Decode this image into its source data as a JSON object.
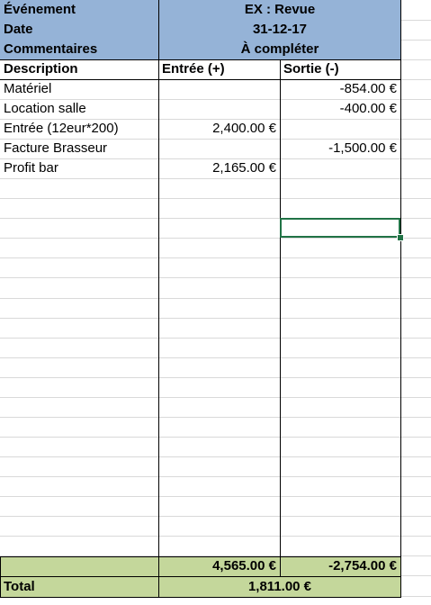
{
  "header": {
    "labels": [
      "Événement",
      "Date",
      "Commentaires"
    ],
    "values": [
      "EX : Revue",
      "31-12-17",
      "À compléter"
    ]
  },
  "columns": [
    "Description",
    "Entrée (+)",
    "Sortie (-)"
  ],
  "rows": [
    {
      "description": "Matériel",
      "entree": "",
      "sortie": "-854.00 €"
    },
    {
      "description": "Location salle",
      "entree": "",
      "sortie": "-400.00 €"
    },
    {
      "description": "Entrée (12eur*200)",
      "entree": "2,400.00 €",
      "sortie": ""
    },
    {
      "description": "Facture Brasseur",
      "entree": "",
      "sortie": "-1,500.00 €"
    },
    {
      "description": "Profit bar",
      "entree": "2,165.00 €",
      "sortie": ""
    }
  ],
  "totals": {
    "entree": "4,565.00 €",
    "sortie": "-2,754.00 €",
    "label": "Total",
    "net": "1,811.00 €"
  },
  "colors": {
    "header": "#95b3d7",
    "total": "#c4d79b",
    "selection": "#217346"
  }
}
